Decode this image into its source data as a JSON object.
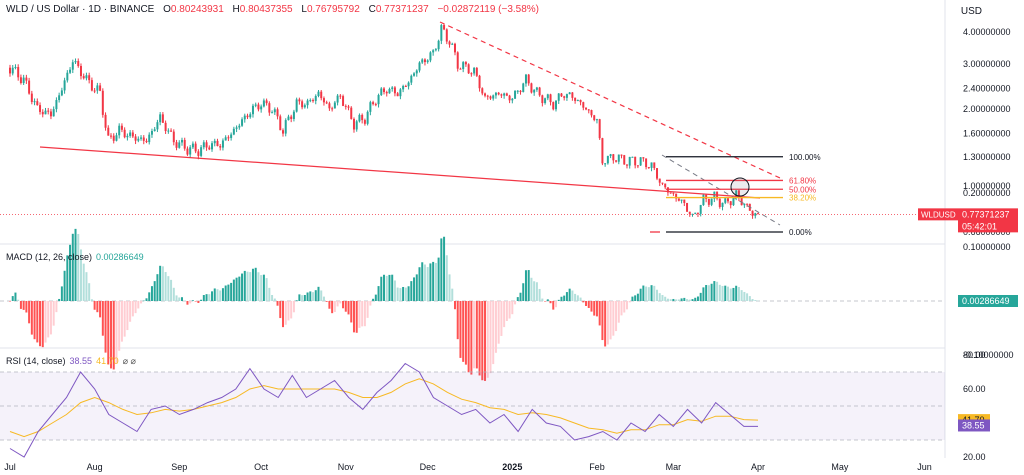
{
  "header": {
    "title": "WLD / US Dollar · 1D · BINANCE",
    "o_label": "O",
    "o": "0.80243931",
    "h_label": "H",
    "h": "0.80437355",
    "l_label": "L",
    "l": "0.76795792",
    "c_label": "C",
    "c": "0.77371237",
    "change": "−0.02872119 (−3.58%)"
  },
  "currency": "USD",
  "last_price": {
    "symbol": "WLDUSD",
    "price": "0.77371237",
    "countdown": "05:42:01"
  },
  "macd": {
    "label": "MACD (12, 26, close)",
    "value": "0.00286649"
  },
  "rsi": {
    "label": "RSI (14, close)",
    "rsi": "38.55",
    "ma": "41.70",
    "icons": "⌀ ⌀"
  },
  "colors": {
    "up": "#26a69a",
    "down": "#f23645",
    "rsi_line": "#7e57c2",
    "rsi_ma": "#f7b924"
  },
  "chart_data": [
    {
      "type": "candlestick",
      "title": "WLD / US Dollar · 1D · BINANCE",
      "y_scale": "log",
      "y_ticks": [
        "4.00000000",
        "3.00000000",
        "2.40000000",
        "2.00000000",
        "1.60000000",
        "1.30000000",
        "1.00000000",
        "0.66000000"
      ],
      "x_ticks": [
        "Jul",
        "Aug",
        "Sep",
        "Oct",
        "Nov",
        "Dec",
        "2025",
        "Feb",
        "Mar",
        "Apr",
        "May",
        "Jun"
      ],
      "close_path": [
        [
          "2024-07-01",
          2.9
        ],
        [
          "2024-07-06",
          2.6
        ],
        [
          "2024-07-11",
          2.0
        ],
        [
          "2024-07-16",
          1.9
        ],
        [
          "2024-07-20",
          2.4
        ],
        [
          "2024-07-24",
          3.1
        ],
        [
          "2024-07-29",
          2.6
        ],
        [
          "2024-08-03",
          2.3
        ],
        [
          "2024-08-06",
          1.5
        ],
        [
          "2024-08-10",
          1.65
        ],
        [
          "2024-08-15",
          1.55
        ],
        [
          "2024-08-20",
          1.5
        ],
        [
          "2024-08-25",
          1.85
        ],
        [
          "2024-08-30",
          1.5
        ],
        [
          "2024-09-04",
          1.4
        ],
        [
          "2024-09-08",
          1.38
        ],
        [
          "2024-09-12",
          1.45
        ],
        [
          "2024-09-16",
          1.45
        ],
        [
          "2024-09-20",
          1.6
        ],
        [
          "2024-09-24",
          1.8
        ],
        [
          "2024-09-28",
          2.0
        ],
        [
          "2024-10-01",
          2.1
        ],
        [
          "2024-10-05",
          2.0
        ],
        [
          "2024-10-09",
          1.65
        ],
        [
          "2024-10-14",
          2.1
        ],
        [
          "2024-10-18",
          2.1
        ],
        [
          "2024-10-22",
          2.3
        ],
        [
          "2024-10-26",
          2.0
        ],
        [
          "2024-10-30",
          2.25
        ],
        [
          "2024-11-04",
          1.75
        ],
        [
          "2024-11-08",
          1.85
        ],
        [
          "2024-11-12",
          2.2
        ],
        [
          "2024-11-16",
          2.4
        ],
        [
          "2024-11-20",
          2.3
        ],
        [
          "2024-11-24",
          2.55
        ],
        [
          "2024-11-28",
          3.0
        ],
        [
          "2024-12-03",
          3.3
        ],
        [
          "2024-12-06",
          4.1
        ],
        [
          "2024-12-09",
          3.7
        ],
        [
          "2024-12-12",
          3.0
        ],
        [
          "2024-12-18",
          2.8
        ],
        [
          "2024-12-22",
          2.2
        ],
        [
          "2024-12-27",
          2.3
        ],
        [
          "2025-01-01",
          2.2
        ],
        [
          "2025-01-06",
          2.6
        ],
        [
          "2025-01-10",
          2.3
        ],
        [
          "2025-01-16",
          2.1
        ],
        [
          "2025-01-20",
          2.3
        ],
        [
          "2025-01-24",
          2.2
        ],
        [
          "2025-01-28",
          2.0
        ],
        [
          "2025-02-01",
          1.8
        ],
        [
          "2025-02-03",
          1.25
        ],
        [
          "2025-02-07",
          1.3
        ],
        [
          "2025-02-12",
          1.25
        ],
        [
          "2025-02-17",
          1.25
        ],
        [
          "2025-02-21",
          1.2
        ],
        [
          "2025-02-25",
          1.0
        ],
        [
          "2025-03-01",
          0.92
        ],
        [
          "2025-03-05",
          0.85
        ],
        [
          "2025-03-08",
          0.75
        ],
        [
          "2025-03-12",
          0.88
        ],
        [
          "2025-03-16",
          0.9
        ],
        [
          "2025-03-20",
          0.85
        ],
        [
          "2025-03-24",
          0.92
        ],
        [
          "2025-03-27",
          0.85
        ],
        [
          "2025-03-30",
          0.78
        ],
        [
          "2025-04-01",
          0.77
        ]
      ],
      "last": 0.77371237,
      "fibonacci": [
        {
          "label": "100.00%",
          "value": 1.3
        },
        {
          "label": "61.80%",
          "value": 1.05
        },
        {
          "label": "50.00%",
          "value": 0.97
        },
        {
          "label": "38.20%",
          "value": 0.9
        },
        {
          "label": "0.00%",
          "value": 0.66
        }
      ]
    },
    {
      "type": "bar",
      "title": "MACD (12, 26, close)",
      "y_ticks": [
        "0.20000000",
        "0.10000000",
        "-0.10000000"
      ],
      "last": 0.00286649
    },
    {
      "type": "line",
      "title": "RSI (14, close)",
      "y_ticks": [
        "80.00",
        "60.00",
        "20.00"
      ],
      "levels": [
        70,
        50,
        30
      ],
      "series": [
        {
          "values": [
            25,
            20,
            35,
            45,
            55,
            70,
            60,
            45,
            40,
            35,
            48,
            50,
            45,
            48,
            52,
            55,
            60,
            72,
            60,
            55,
            68,
            55,
            60,
            65,
            55,
            48,
            58,
            65,
            75,
            70,
            55,
            50,
            45,
            48,
            40,
            45,
            35,
            48,
            40,
            38,
            30,
            32,
            35,
            30,
            40,
            35,
            45,
            38,
            48,
            40,
            52,
            45,
            38,
            38
          ]
        },
        {
          "values": [
            35,
            32,
            35,
            40,
            45,
            52,
            55,
            52,
            48,
            45,
            46,
            48,
            47,
            48,
            50,
            52,
            55,
            60,
            62,
            60,
            60,
            60,
            60,
            60,
            58,
            55,
            55,
            58,
            63,
            66,
            63,
            58,
            54,
            52,
            49,
            48,
            45,
            46,
            45,
            43,
            40,
            37,
            36,
            34,
            36,
            36,
            39,
            39,
            42,
            41,
            44,
            44,
            42,
            41.7
          ]
        }
      ]
    }
  ]
}
